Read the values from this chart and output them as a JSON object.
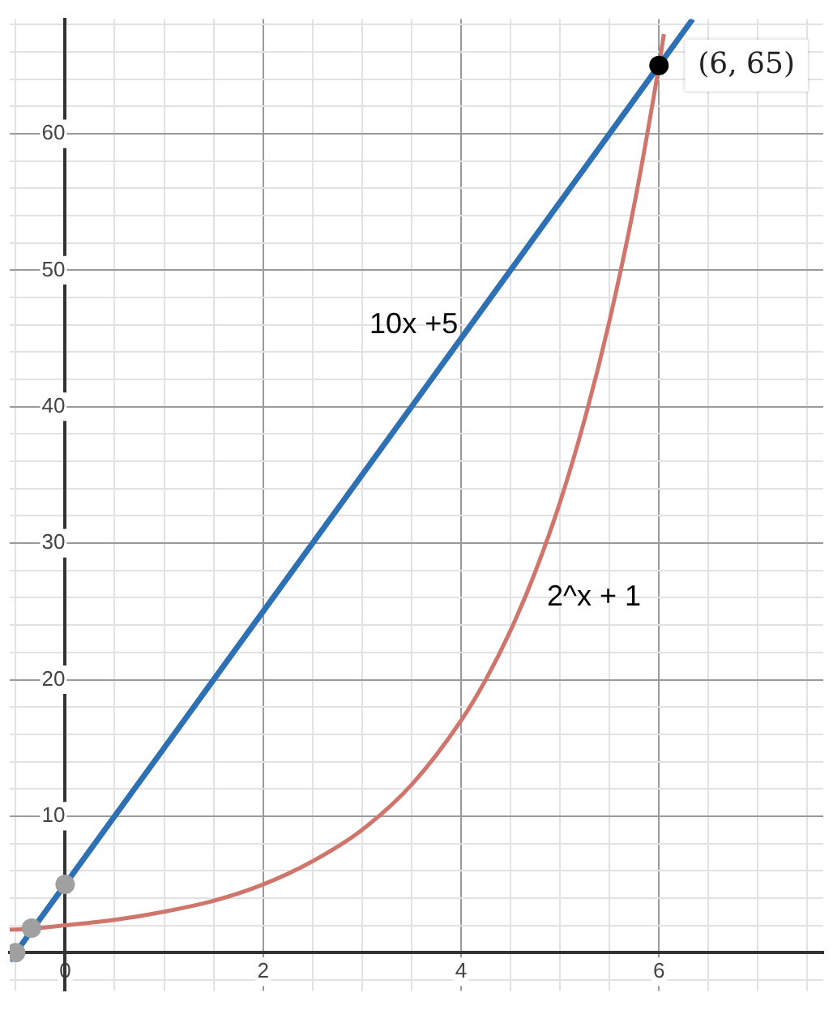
{
  "chart_data": {
    "type": "line",
    "xlim": [
      -0.56,
      7.66
    ],
    "ylim": [
      -2.8,
      68.4
    ],
    "xticks": [
      {
        "value": -0.5,
        "label": null
      },
      {
        "value": 0,
        "label": "0"
      },
      {
        "value": 0.5,
        "label": null
      },
      {
        "value": 1,
        "label": null
      },
      {
        "value": 1.5,
        "label": null
      },
      {
        "value": 2,
        "label": "2"
      },
      {
        "value": 2.5,
        "label": null
      },
      {
        "value": 3,
        "label": null
      },
      {
        "value": 3.5,
        "label": null
      },
      {
        "value": 4,
        "label": "4"
      },
      {
        "value": 4.5,
        "label": null
      },
      {
        "value": 5,
        "label": null
      },
      {
        "value": 5.5,
        "label": null
      },
      {
        "value": 6,
        "label": "6"
      },
      {
        "value": 6.5,
        "label": null
      },
      {
        "value": 7,
        "label": null
      },
      {
        "value": 7.5,
        "label": null
      }
    ],
    "yticks": [
      {
        "value": -2,
        "label": null
      },
      {
        "value": 2,
        "label": null
      },
      {
        "value": 4,
        "label": null
      },
      {
        "value": 6,
        "label": null
      },
      {
        "value": 8,
        "label": null
      },
      10,
      {
        "value": 12,
        "label": null
      },
      {
        "value": 14,
        "label": null
      },
      {
        "value": 16,
        "label": null
      },
      {
        "value": 18,
        "label": null
      },
      20,
      {
        "value": 22,
        "label": null
      },
      {
        "value": 24,
        "label": null
      },
      {
        "value": 26,
        "label": null
      },
      {
        "value": 28,
        "label": null
      },
      30,
      {
        "value": 32,
        "label": null
      },
      {
        "value": 34,
        "label": null
      },
      {
        "value": 36,
        "label": null
      },
      {
        "value": 38,
        "label": null
      },
      40,
      {
        "value": 42,
        "label": null
      },
      {
        "value": 44,
        "label": null
      },
      {
        "value": 46,
        "label": null
      },
      {
        "value": 48,
        "label": null
      },
      50,
      {
        "value": 52,
        "label": null
      },
      {
        "value": 54,
        "label": null
      },
      {
        "value": 56,
        "label": null
      },
      {
        "value": 58,
        "label": null
      },
      60,
      {
        "value": 62,
        "label": null
      },
      {
        "value": 64,
        "label": null
      },
      {
        "value": 66,
        "label": null
      },
      {
        "value": 68,
        "label": null
      }
    ],
    "grid": true,
    "marker": "none",
    "series": [
      {
        "name": "10x +5",
        "color": "#2d70b3",
        "x": [
          -0.56,
          0,
          2,
          4,
          6,
          6.34
        ],
        "values": [
          -0.6,
          5,
          25,
          45,
          65,
          68.4
        ]
      },
      {
        "name": "2^x + 1",
        "color": "#d0756c",
        "x": [
          -0.56,
          -0.5,
          0,
          0.5,
          1,
          1.5,
          2,
          2.5,
          3,
          3.5,
          4,
          4.25,
          4.5,
          4.75,
          5,
          5.25,
          5.5,
          5.75,
          6,
          6.05
        ],
        "values": [
          1.7,
          1.7,
          2,
          2.4,
          3,
          3.8,
          5,
          6.7,
          9,
          12.3,
          17,
          20,
          23.6,
          27.9,
          33,
          39.1,
          46.3,
          54.8,
          65,
          67.3
        ]
      },
      {
        "type": "scatter",
        "marker": "circle",
        "x": [
          -0.5,
          -0.34,
          0,
          6
        ],
        "values": [
          0,
          1.8,
          5,
          65
        ],
        "colors": [
          "#a0a0a0",
          "#a0a0a0",
          "#a0a0a0",
          "#000000"
        ]
      }
    ],
    "annotations": [
      {
        "text": "(6, 65)",
        "x": 6,
        "y": 65
      }
    ]
  }
}
